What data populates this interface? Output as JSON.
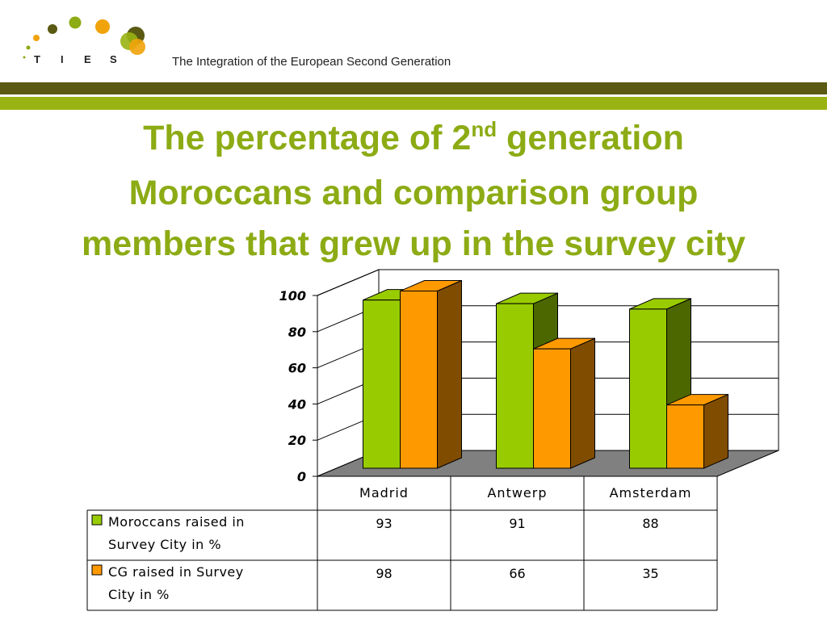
{
  "header": {
    "logo_letters": [
      "T",
      "I",
      "E",
      "S"
    ],
    "tagline": "The Integration of the European Second Generation"
  },
  "title": {
    "part1": "The percentage of 2",
    "superscript": "nd",
    "part2": " generation",
    "line2": "Moroccans and comparison group",
    "line3": "members that grew up in the survey city"
  },
  "chart_data": {
    "type": "bar",
    "style": "3d-clustered-column-with-data-table",
    "categories": [
      "Madrid",
      "Antwerp",
      "Amsterdam"
    ],
    "series": [
      {
        "name": "Moroccans raised in Survey City in %",
        "values": [
          93,
          91,
          88
        ],
        "color": "#99cc00",
        "side_color": "#4c6600"
      },
      {
        "name": "CG raised in Survey City in %",
        "values": [
          98,
          66,
          35
        ],
        "color": "#ff9900",
        "side_color": "#804c00"
      }
    ],
    "yticks": [
      0,
      20,
      40,
      60,
      80,
      100
    ],
    "ylim": [
      0,
      100
    ],
    "grid": true,
    "floor_color": "#808080",
    "legend": "in-data-table"
  }
}
